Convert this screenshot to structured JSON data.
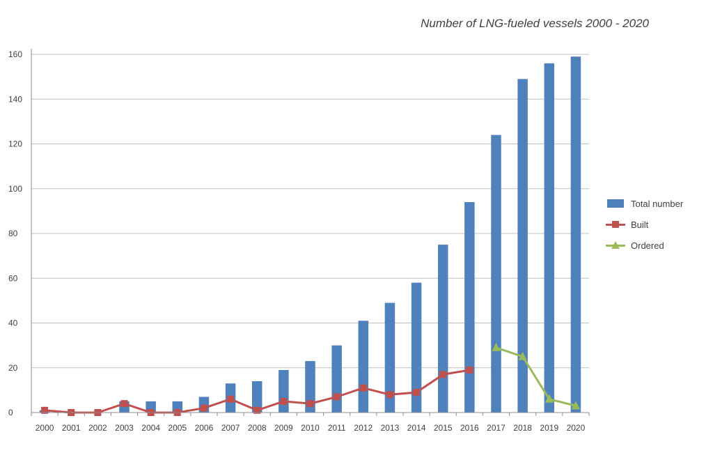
{
  "chart_data": {
    "type": "bar",
    "title": "Number of LNG-fueled vessels 2000 - 2020",
    "xlabel": "",
    "ylabel": "",
    "categories": [
      "2000",
      "2001",
      "2002",
      "2003",
      "2004",
      "2005",
      "2006",
      "2007",
      "2008",
      "2009",
      "2010",
      "2011",
      "2012",
      "2013",
      "2014",
      "2015",
      "2016",
      "2017",
      "2018",
      "2019",
      "2020"
    ],
    "ylim": [
      0,
      160
    ],
    "yticks": [
      "0",
      "20",
      "40",
      "60",
      "80",
      "100",
      "120",
      "140",
      "160"
    ],
    "grid": true,
    "legend_position": "right",
    "series": [
      {
        "name": "Total number",
        "kind": "bar",
        "color": "#4f81bd",
        "values": [
          1,
          0,
          0,
          5,
          5,
          5,
          7,
          13,
          14,
          19,
          23,
          30,
          41,
          49,
          58,
          75,
          94,
          124,
          149,
          156,
          159
        ]
      },
      {
        "name": "Built",
        "kind": "line",
        "marker": "square",
        "color": "#c0504d",
        "values": [
          1,
          0,
          0,
          4,
          0,
          0,
          2,
          6,
          1,
          5,
          4,
          7,
          11,
          8,
          9,
          17,
          19,
          null,
          null,
          null,
          null
        ]
      },
      {
        "name": "Ordered",
        "kind": "line",
        "marker": "triangle",
        "color": "#9bbb59",
        "values": [
          null,
          null,
          null,
          null,
          null,
          null,
          null,
          null,
          null,
          null,
          null,
          null,
          null,
          null,
          null,
          null,
          null,
          29,
          25,
          6,
          3
        ]
      }
    ]
  }
}
